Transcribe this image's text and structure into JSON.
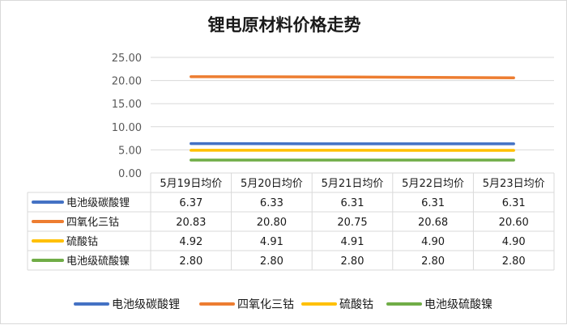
{
  "chart_data": {
    "type": "line",
    "title": "锂电原材料价格走势",
    "categories": [
      "5月19日均价",
      "5月20日均价",
      "5月21日均价",
      "5月22日均价",
      "5月23日均价"
    ],
    "yticks": [
      "0.00",
      "5.00",
      "10.00",
      "15.00",
      "20.00",
      "25.00"
    ],
    "ylim": [
      0,
      25
    ],
    "grid": true,
    "legend_position": "bottom",
    "data_table": true,
    "series": [
      {
        "name": "电池级碳酸锂",
        "color": "#4472C4",
        "values": [
          6.37,
          6.33,
          6.31,
          6.31,
          6.31
        ],
        "labels": [
          "6.37",
          "6.33",
          "6.31",
          "6.31",
          "6.31"
        ]
      },
      {
        "name": "四氧化三钴",
        "color": "#ED7D31",
        "values": [
          20.83,
          20.8,
          20.75,
          20.68,
          20.6
        ],
        "labels": [
          "20.83",
          "20.80",
          "20.75",
          "20.68",
          "20.60"
        ]
      },
      {
        "name": "硫酸钴",
        "color": "#FFC000",
        "values": [
          4.92,
          4.91,
          4.91,
          4.9,
          4.9
        ],
        "labels": [
          "4.92",
          "4.91",
          "4.91",
          "4.90",
          "4.90"
        ]
      },
      {
        "name": "电池级硫酸镍",
        "color": "#70AD47",
        "values": [
          2.8,
          2.8,
          2.8,
          2.8,
          2.8
        ],
        "labels": [
          "2.80",
          "2.80",
          "2.80",
          "2.80",
          "2.80"
        ]
      }
    ]
  }
}
